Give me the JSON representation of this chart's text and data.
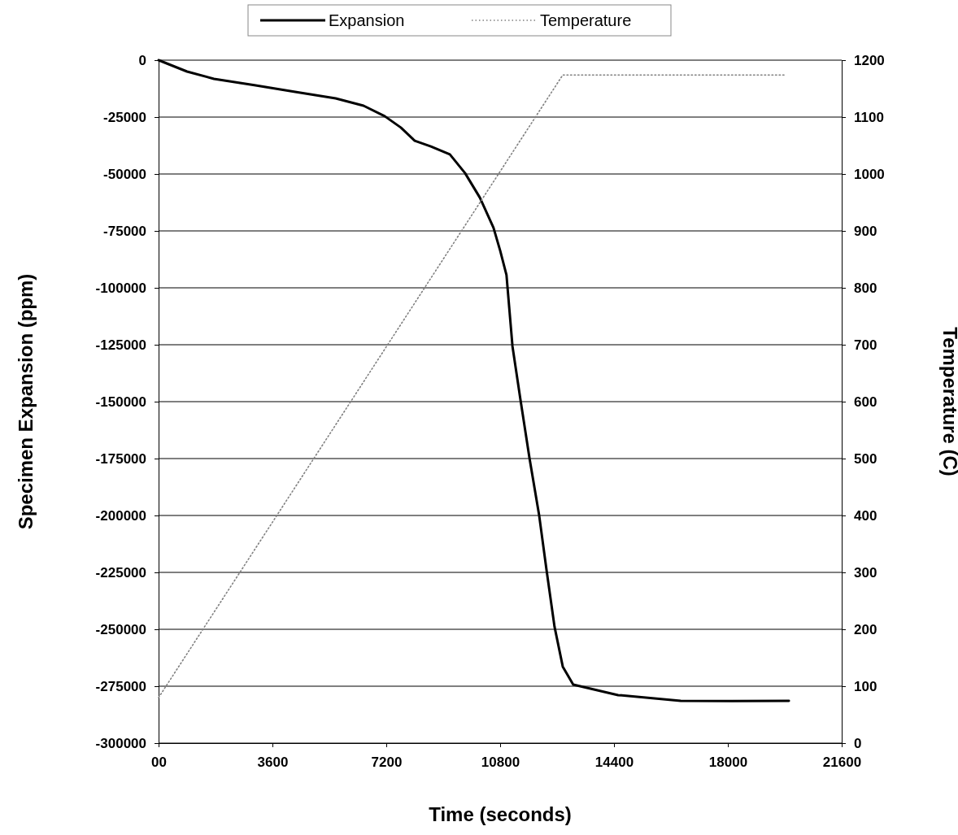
{
  "chart_data": {
    "type": "line",
    "xlabel": "Time (seconds)",
    "ylabel": "Specimen Expansion (ppm)",
    "y2label": "Temperature (C)",
    "xlim": [
      0,
      21600
    ],
    "xticks": [
      {
        "value": 0,
        "label": "00"
      },
      3600,
      7200,
      10800,
      14400,
      18000,
      21600
    ],
    "ylim": [
      -300000,
      0
    ],
    "yticks": [
      -300000,
      -275000,
      -250000,
      -225000,
      -200000,
      -175000,
      -150000,
      -125000,
      -100000,
      -75000,
      -50000,
      -25000,
      0
    ],
    "y2lim": [
      0,
      1200
    ],
    "y2ticks": [
      0,
      100,
      200,
      300,
      400,
      500,
      600,
      700,
      800,
      900,
      1000,
      1100,
      1200
    ],
    "grid": "y",
    "legend": "top",
    "series": [
      {
        "name": "Expansion",
        "color": "#000000",
        "line_style": "solid",
        "x": [
          0,
          900,
          1750,
          3030,
          4320,
          5600,
          6480,
          7150,
          7660,
          8100,
          8610,
          9210,
          9690,
          10160,
          10590,
          10800,
          11000,
          11190,
          11440,
          11730,
          12030,
          12270,
          12520,
          12780,
          13110,
          14530,
          16510,
          18130,
          19930
        ],
        "values": [
          0,
          -5000,
          -8200,
          -11000,
          -13900,
          -16800,
          -20000,
          -24600,
          -29600,
          -35400,
          -37900,
          -41400,
          -49600,
          -60400,
          -73600,
          -83600,
          -94300,
          -125700,
          -148900,
          -175000,
          -199600,
          -224300,
          -248900,
          -266400,
          -274300,
          -278900,
          -281400,
          -281500,
          -281400
        ]
      },
      {
        "name": "Temperature",
        "color": "#808080",
        "line_style": "dotted",
        "axis": "y2",
        "x": [
          0,
          12780,
          19800
        ],
        "values": [
          80,
          1174,
          1174
        ]
      }
    ]
  }
}
